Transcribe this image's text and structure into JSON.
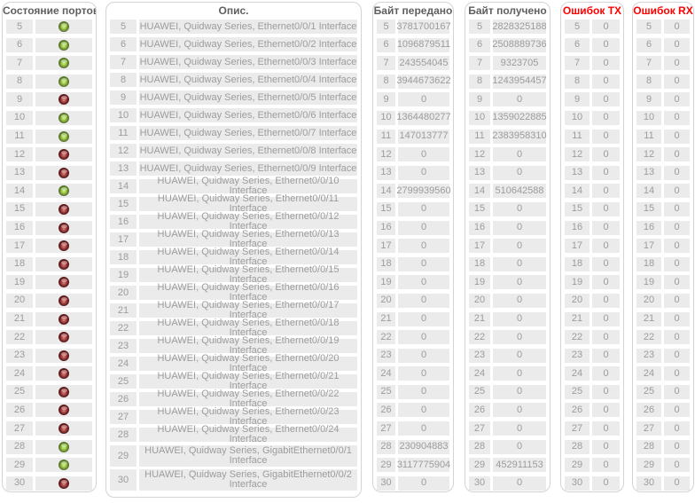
{
  "panels": {
    "status": {
      "title": "Состояние портов"
    },
    "description": {
      "title": "Опис."
    },
    "tx_bytes": {
      "title": "Байт передано"
    },
    "rx_bytes": {
      "title": "Байт получено"
    },
    "tx_errors": {
      "title": "Ошибок TX"
    },
    "rx_errors": {
      "title": "Ошибок RX"
    }
  },
  "colors": {
    "row_bg": "#ebebeb",
    "row_text": "#9c9c9c",
    "header_text": "#5f5f5f",
    "error_header_text": "#ff0000",
    "led_green": "#94c73c",
    "led_red": "#ad3636",
    "panel_border": "#d4d4d4"
  },
  "rows": [
    {
      "port": 5,
      "status": "green",
      "desc": "HUAWEI, Quidway Series, Ethernet0/0/1 Interface",
      "tx_bytes": "3781700167",
      "rx_bytes": "2828325188",
      "tx_errors": "0",
      "rx_errors": "0"
    },
    {
      "port": 6,
      "status": "green",
      "desc": "HUAWEI, Quidway Series, Ethernet0/0/2 Interface",
      "tx_bytes": "1096879511",
      "rx_bytes": "2508889736",
      "tx_errors": "0",
      "rx_errors": "0"
    },
    {
      "port": 7,
      "status": "green",
      "desc": "HUAWEI, Quidway Series, Ethernet0/0/3 Interface",
      "tx_bytes": "243554045",
      "rx_bytes": "9323705",
      "tx_errors": "0",
      "rx_errors": "0"
    },
    {
      "port": 8,
      "status": "green",
      "desc": "HUAWEI, Quidway Series, Ethernet0/0/4 Interface",
      "tx_bytes": "3944673622",
      "rx_bytes": "1243954457",
      "tx_errors": "0",
      "rx_errors": "0"
    },
    {
      "port": 9,
      "status": "red",
      "desc": "HUAWEI, Quidway Series, Ethernet0/0/5 Interface",
      "tx_bytes": "0",
      "rx_bytes": "0",
      "tx_errors": "0",
      "rx_errors": "0"
    },
    {
      "port": 10,
      "status": "green",
      "desc": "HUAWEI, Quidway Series, Ethernet0/0/6 Interface",
      "tx_bytes": "1364480277",
      "rx_bytes": "1359022885",
      "tx_errors": "0",
      "rx_errors": "0"
    },
    {
      "port": 11,
      "status": "green",
      "desc": "HUAWEI, Quidway Series, Ethernet0/0/7 Interface",
      "tx_bytes": "147013777",
      "rx_bytes": "2383958310",
      "tx_errors": "0",
      "rx_errors": "0"
    },
    {
      "port": 12,
      "status": "red",
      "desc": "HUAWEI, Quidway Series, Ethernet0/0/8 Interface",
      "tx_bytes": "0",
      "rx_bytes": "0",
      "tx_errors": "0",
      "rx_errors": "0"
    },
    {
      "port": 13,
      "status": "red",
      "desc": "HUAWEI, Quidway Series, Ethernet0/0/9 Interface",
      "tx_bytes": "0",
      "rx_bytes": "0",
      "tx_errors": "0",
      "rx_errors": "0"
    },
    {
      "port": 14,
      "status": "green",
      "desc": "HUAWEI, Quidway Series, Ethernet0/0/10 Interface",
      "tx_bytes": "2799939560",
      "rx_bytes": "510642588",
      "tx_errors": "0",
      "rx_errors": "0"
    },
    {
      "port": 15,
      "status": "red",
      "desc": "HUAWEI, Quidway Series, Ethernet0/0/11 Interface",
      "tx_bytes": "0",
      "rx_bytes": "0",
      "tx_errors": "0",
      "rx_errors": "0"
    },
    {
      "port": 16,
      "status": "red",
      "desc": "HUAWEI, Quidway Series, Ethernet0/0/12 Interface",
      "tx_bytes": "0",
      "rx_bytes": "0",
      "tx_errors": "0",
      "rx_errors": "0"
    },
    {
      "port": 17,
      "status": "red",
      "desc": "HUAWEI, Quidway Series, Ethernet0/0/13 Interface",
      "tx_bytes": "0",
      "rx_bytes": "0",
      "tx_errors": "0",
      "rx_errors": "0"
    },
    {
      "port": 18,
      "status": "red",
      "desc": "HUAWEI, Quidway Series, Ethernet0/0/14 Interface",
      "tx_bytes": "0",
      "rx_bytes": "0",
      "tx_errors": "0",
      "rx_errors": "0"
    },
    {
      "port": 19,
      "status": "red",
      "desc": "HUAWEI, Quidway Series, Ethernet0/0/15 Interface",
      "tx_bytes": "0",
      "rx_bytes": "0",
      "tx_errors": "0",
      "rx_errors": "0"
    },
    {
      "port": 20,
      "status": "red",
      "desc": "HUAWEI, Quidway Series, Ethernet0/0/16 Interface",
      "tx_bytes": "0",
      "rx_bytes": "0",
      "tx_errors": "0",
      "rx_errors": "0"
    },
    {
      "port": 21,
      "status": "red",
      "desc": "HUAWEI, Quidway Series, Ethernet0/0/17 Interface",
      "tx_bytes": "0",
      "rx_bytes": "0",
      "tx_errors": "0",
      "rx_errors": "0"
    },
    {
      "port": 22,
      "status": "red",
      "desc": "HUAWEI, Quidway Series, Ethernet0/0/18 Interface",
      "tx_bytes": "0",
      "rx_bytes": "0",
      "tx_errors": "0",
      "rx_errors": "0"
    },
    {
      "port": 23,
      "status": "red",
      "desc": "HUAWEI, Quidway Series, Ethernet0/0/19 Interface",
      "tx_bytes": "0",
      "rx_bytes": "0",
      "tx_errors": "0",
      "rx_errors": "0"
    },
    {
      "port": 24,
      "status": "red",
      "desc": "HUAWEI, Quidway Series, Ethernet0/0/20 Interface",
      "tx_bytes": "0",
      "rx_bytes": "0",
      "tx_errors": "0",
      "rx_errors": "0"
    },
    {
      "port": 25,
      "status": "red",
      "desc": "HUAWEI, Quidway Series, Ethernet0/0/21 Interface",
      "tx_bytes": "0",
      "rx_bytes": "0",
      "tx_errors": "0",
      "rx_errors": "0"
    },
    {
      "port": 26,
      "status": "red",
      "desc": "HUAWEI, Quidway Series, Ethernet0/0/22 Interface",
      "tx_bytes": "0",
      "rx_bytes": "0",
      "tx_errors": "0",
      "rx_errors": "0"
    },
    {
      "port": 27,
      "status": "red",
      "desc": "HUAWEI, Quidway Series, Ethernet0/0/23 Interface",
      "tx_bytes": "0",
      "rx_bytes": "0",
      "tx_errors": "0",
      "rx_errors": "0"
    },
    {
      "port": 28,
      "status": "green",
      "desc": "HUAWEI, Quidway Series, Ethernet0/0/24 Interface",
      "tx_bytes": "230904883",
      "rx_bytes": "0",
      "tx_errors": "0",
      "rx_errors": "0"
    },
    {
      "port": 29,
      "status": "green",
      "desc": "HUAWEI, Quidway Series, GigabitEthernet0/0/1 Interface",
      "tall": true,
      "tx_bytes": "3117775904",
      "rx_bytes": "452911153",
      "tx_errors": "0",
      "rx_errors": "0"
    },
    {
      "port": 30,
      "status": "red",
      "desc": "HUAWEI, Quidway Series, GigabitEthernet0/0/2 Interface",
      "tall": true,
      "tx_bytes": "0",
      "rx_bytes": "0",
      "tx_errors": "0",
      "rx_errors": "0"
    }
  ]
}
